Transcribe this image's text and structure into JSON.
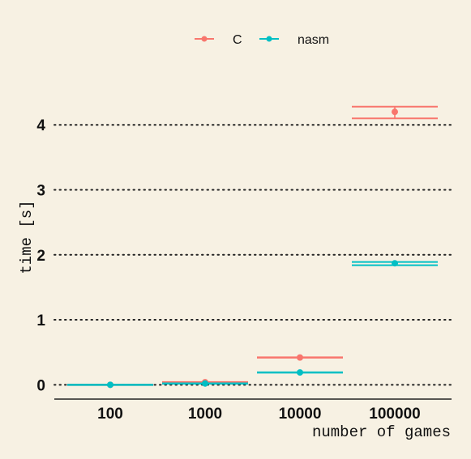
{
  "chart_data": {
    "type": "scatter",
    "title": "",
    "xlabel": "number of games",
    "ylabel": "time [s]",
    "x_scale": "log",
    "categories": [
      "100",
      "1000",
      "10000",
      "100000"
    ],
    "x": [
      100,
      1000,
      10000,
      100000
    ],
    "ylim": [
      -0.22,
      4.8
    ],
    "yticks": [
      0,
      1,
      2,
      3,
      4
    ],
    "grid": "horizontal dotted",
    "legend_position": "top",
    "series": [
      {
        "name": "C",
        "color": "#f8766d",
        "points": [
          {
            "x": 100,
            "y": 0.0,
            "ymin": 0.0,
            "ymax": 0.0
          },
          {
            "x": 1000,
            "y": 0.04,
            "ymin": 0.03,
            "ymax": 0.05
          },
          {
            "x": 10000,
            "y": 0.42,
            "ymin": 0.41,
            "ymax": 0.43
          },
          {
            "x": 100000,
            "y": 4.2,
            "ymin": 4.1,
            "ymax": 4.28
          }
        ]
      },
      {
        "name": "nasm",
        "color": "#00bfc4",
        "points": [
          {
            "x": 100,
            "y": 0.0,
            "ymin": 0.0,
            "ymax": 0.0
          },
          {
            "x": 1000,
            "y": 0.02,
            "ymin": 0.015,
            "ymax": 0.025
          },
          {
            "x": 10000,
            "y": 0.19,
            "ymin": 0.185,
            "ymax": 0.195
          },
          {
            "x": 100000,
            "y": 1.87,
            "ymin": 1.84,
            "ymax": 1.89
          }
        ]
      }
    ]
  }
}
